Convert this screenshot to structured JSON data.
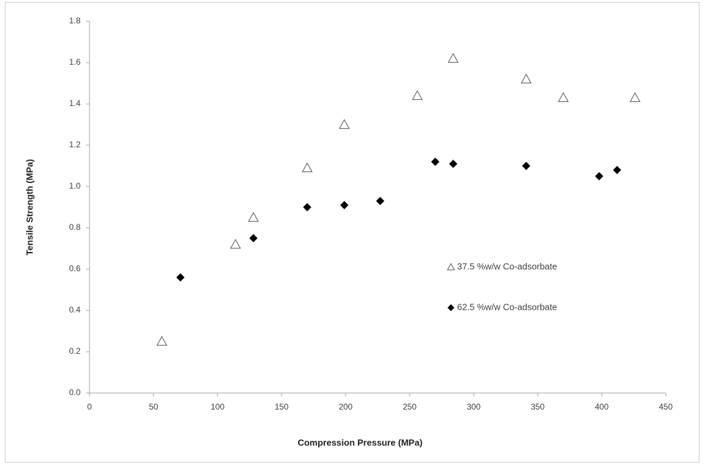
{
  "chart_data": {
    "type": "scatter",
    "xlabel": "Compression Pressure (MPa)",
    "ylabel": "Tensile Strength (MPa)",
    "xlim": [
      0,
      450
    ],
    "xticks": [
      0,
      50,
      100,
      150,
      200,
      250,
      300,
      350,
      400,
      450
    ],
    "ylim": [
      0,
      1.8
    ],
    "yticks": [
      {
        "value": 0,
        "label": "0.0"
      },
      0.2,
      0.4,
      0.6,
      0.8,
      {
        "value": 1,
        "label": "1.0"
      },
      1.2,
      1.4,
      1.6,
      1.8
    ],
    "grid": false,
    "legend": "inside-right",
    "series": [
      {
        "name": "37.5 %w/w Co-adsorbate",
        "color": "#595959",
        "marker": "triangle-open",
        "x": [
          56.5,
          114,
          128,
          170,
          199,
          256,
          284,
          341,
          370,
          426
        ],
        "values": [
          0.25,
          0.72,
          0.85,
          1.09,
          1.3,
          1.44,
          1.62,
          1.52,
          1.43,
          1.43
        ]
      },
      {
        "name": "62.5 %w/w Co-adsorbate",
        "color": "#000000",
        "marker": "diamond",
        "x": [
          71,
          128,
          170,
          199,
          227,
          270,
          284,
          341,
          398,
          412
        ],
        "values": [
          0.56,
          0.75,
          0.9,
          0.91,
          0.93,
          1.12,
          1.11,
          1.1,
          1.05,
          1.08
        ]
      }
    ]
  }
}
